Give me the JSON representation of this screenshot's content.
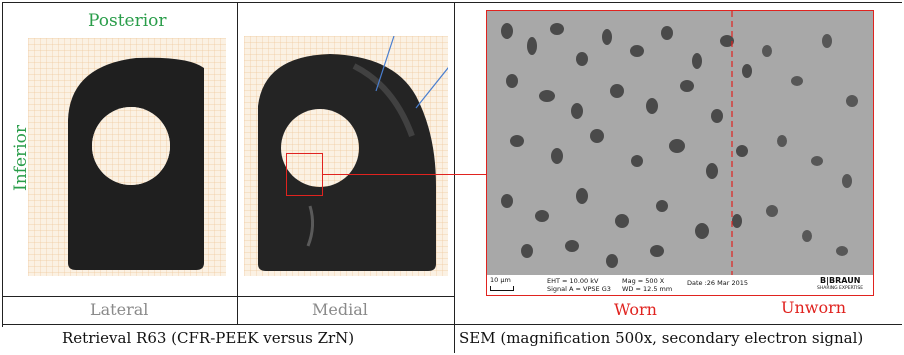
{
  "left_panel": {
    "top_label": "Posterior",
    "side_label": "Inferior",
    "lateral_label": "Lateral",
    "medial_label": "Medial",
    "caption": "Retrieval R63 (CFR-PEEK versus ZrN)"
  },
  "right_panel": {
    "worn_label": "Worn",
    "unworn_label": "Unworn",
    "caption": "SEM (magnification 500x, secondary electron signal)",
    "sem_footer": {
      "scale": "10 µm",
      "eht": "EHT = 10.00 kV",
      "signal": "Signal A = VPSE G3",
      "mag": "Mag =   500 X",
      "wd": "WD = 12.5 mm",
      "date": "Date :26 Mar 2015",
      "brand": "B|BRAUN",
      "brand_sub": "SHARING EXPERTISE"
    }
  },
  "colors": {
    "accent_red": "#e0231f",
    "label_green": "#2a9d4a",
    "grid_orange": "#f0c89a"
  }
}
